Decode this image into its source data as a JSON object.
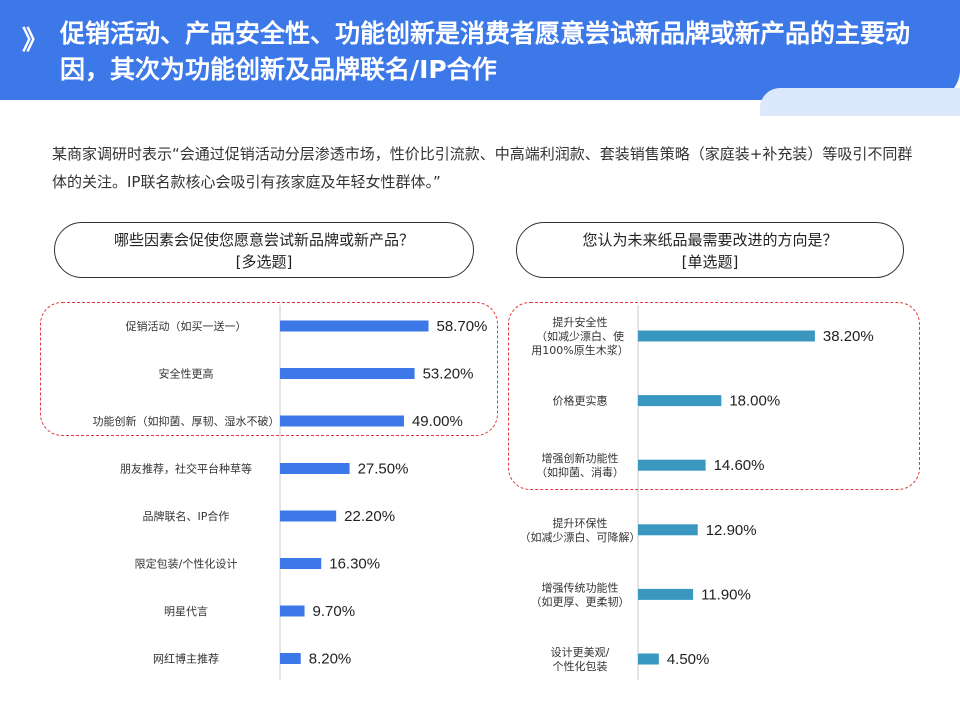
{
  "header": {
    "chevron": "》",
    "title": "促销活动、产品安全性、功能创新是消费者愿意尝试新品牌或新产品的主要动因，其次为功能创新及品牌联名/IP合作"
  },
  "intro": "某商家调研时表示“会通过促销活动分层渗透市场，性价比引流款、中高端利润款、套装销售策略（家庭装+补充装）等吸引不同群体的关注。IP联名款核心会吸引有孩家庭及年轻女性群体。”",
  "questions": {
    "left": {
      "line1": "哪些因素会促使您愿意尝试新品牌或新产品？",
      "line2": "[多选题]"
    },
    "right": {
      "line1": "您认为未来纸品最需要改进的方向是？",
      "line2": "[单选题]"
    }
  },
  "colors": {
    "header": "#3c78e8",
    "left_bar": "#3c78e8",
    "right_bar": "#3a98c0",
    "highlight": "#e03a3a"
  },
  "chart_data": [
    {
      "type": "bar",
      "orientation": "horizontal",
      "unit": "%",
      "categories": [
        [
          "促销活动（如买一送一）"
        ],
        [
          "安全性更高"
        ],
        [
          "功能创新（如抑菌、厚韧、湿水不破）"
        ],
        [
          "朋友推荐，社交平台种草等"
        ],
        [
          "品牌联名、IP合作"
        ],
        [
          "限定包装/个性化设计"
        ],
        [
          "明星代言"
        ],
        [
          "网红博主推荐"
        ]
      ],
      "values": [
        58.7,
        53.2,
        49.0,
        27.5,
        22.2,
        16.3,
        9.7,
        8.2
      ],
      "value_labels": [
        "58.70%",
        "53.20%",
        "49.00%",
        "27.50%",
        "22.20%",
        "16.30%",
        "9.70%",
        "8.20%"
      ],
      "xlim": [
        0,
        100
      ],
      "highlighted": [
        0,
        1,
        2
      ]
    },
    {
      "type": "bar",
      "orientation": "horizontal",
      "unit": "%",
      "categories": [
        [
          "提升安全性",
          "（如减少漂白、使",
          "用100%原生木浆）"
        ],
        [
          "价格更实惠"
        ],
        [
          "增强创新功能性",
          "（如抑菌、消毒）"
        ],
        [
          "提升环保性",
          "（如减少漂白、可降解）"
        ],
        [
          "增强传统功能性",
          "（如更厚、更柔韧）"
        ],
        [
          "设计更美观/",
          "个性化包装"
        ]
      ],
      "values": [
        38.2,
        18.0,
        14.6,
        12.9,
        11.9,
        4.5
      ],
      "value_labels": [
        "38.20%",
        "18.00%",
        "14.60%",
        "12.90%",
        "11.90%",
        "4.50%"
      ],
      "xlim": [
        0,
        100
      ],
      "highlighted": [
        0,
        1,
        2
      ]
    }
  ]
}
